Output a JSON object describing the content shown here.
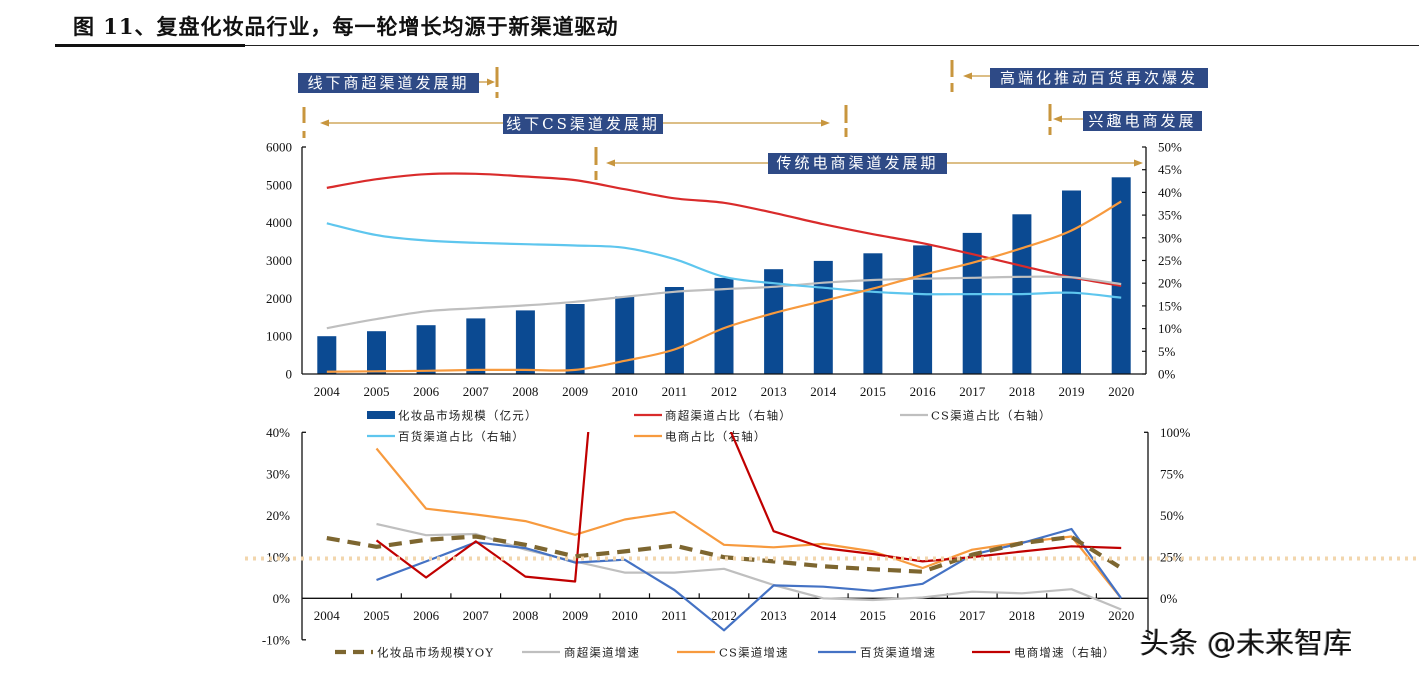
{
  "figure": {
    "title": "图 11、复盘化妆品行业，每一轮增长均源于新渠道驱动"
  },
  "annotations": [
    {
      "label": "线下商超渠道发展期",
      "arrow": "right"
    },
    {
      "label": "线下CS渠道发展期",
      "arrow": "both"
    },
    {
      "label": "传统电商渠道发展期",
      "arrow": "both"
    },
    {
      "label": "高端化推动百货再次爆发",
      "arrow": "left"
    },
    {
      "label": "兴趣电商发展",
      "arrow": "left"
    }
  ],
  "colors": {
    "annotation_box": "#2e4a86",
    "annotation_marker": "#c8963e",
    "reference_line": "#f2d6ad"
  },
  "watermark": "头条 @未来智库",
  "chart_data": [
    {
      "type": "bar",
      "title": "",
      "xlabel": "",
      "ylabel": "",
      "categories": [
        "2004",
        "2005",
        "2006",
        "2007",
        "2008",
        "2009",
        "2010",
        "2011",
        "2012",
        "2013",
        "2014",
        "2015",
        "2016",
        "2017",
        "2018",
        "2019",
        "2020"
      ],
      "ylim_left": [
        0,
        6000
      ],
      "ylim_right": [
        0,
        50
      ],
      "yticks_left": [
        "0",
        "1000",
        "2000",
        "3000",
        "4000",
        "5000",
        "6000"
      ],
      "yticks_right": [
        "0%",
        "5%",
        "10%",
        "15%",
        "20%",
        "25%",
        "30%",
        "35%",
        "40%",
        "45%",
        "50%"
      ],
      "grid": false,
      "legend_position": "bottom",
      "series": [
        {
          "name": "化妆品市场规模（亿元）",
          "type": "bar",
          "axis": "left",
          "color": "#0b4a92",
          "values": [
            1000,
            1130,
            1290,
            1470,
            1680,
            1850,
            2050,
            2300,
            2540,
            2770,
            2990,
            3190,
            3400,
            3730,
            4220,
            4850,
            5200
          ]
        },
        {
          "name": "商超渠道占比（右轴）",
          "type": "line",
          "axis": "right",
          "color": "#d92b2b",
          "values": [
            41.0,
            42.9,
            44.0,
            44.1,
            43.5,
            42.7,
            40.7,
            38.7,
            37.7,
            35.5,
            33.0,
            30.8,
            28.8,
            26.4,
            23.8,
            21.3,
            19.4
          ]
        },
        {
          "name": "CS渠道占比（右轴）",
          "type": "line",
          "axis": "right",
          "color": "#bfbfbf",
          "values": [
            10.1,
            12.1,
            13.8,
            14.5,
            15.1,
            15.9,
            17.0,
            18.1,
            18.7,
            19.2,
            20.1,
            20.7,
            21.0,
            21.2,
            21.4,
            21.3,
            19.8
          ]
        },
        {
          "name": "百货渠道占比（右轴）",
          "type": "line",
          "axis": "right",
          "color": "#5ec6ee",
          "values": [
            33.2,
            30.6,
            29.4,
            28.9,
            28.6,
            28.3,
            27.8,
            25.3,
            21.4,
            20.0,
            19.0,
            18.1,
            17.6,
            17.6,
            17.6,
            17.9,
            16.8
          ]
        },
        {
          "name": "电商占比（右轴）",
          "type": "line",
          "axis": "right",
          "color": "#f79a3e",
          "values": [
            0.5,
            0.6,
            0.7,
            0.9,
            0.9,
            0.9,
            2.9,
            5.4,
            10.1,
            13.4,
            16.1,
            18.8,
            21.8,
            24.5,
            27.7,
            31.6,
            38.0
          ]
        }
      ]
    },
    {
      "type": "line",
      "title": "",
      "xlabel": "",
      "ylabel": "",
      "categories": [
        "2004",
        "2005",
        "2006",
        "2007",
        "2008",
        "2009",
        "2010",
        "2011",
        "2012",
        "2013",
        "2014",
        "2015",
        "2016",
        "2017",
        "2018",
        "2019",
        "2020"
      ],
      "ylim_left": [
        -10,
        40
      ],
      "ylim_right": [
        0,
        100
      ],
      "yticks_left": [
        "-10%",
        "0%",
        "10%",
        "20%",
        "30%",
        "40%"
      ],
      "yticks_right": [
        "0%",
        "25%",
        "50%",
        "75%",
        "100%"
      ],
      "grid": false,
      "legend_position": "bottom",
      "reference_line": {
        "axis": "left",
        "value": 9.6,
        "style": "dotted"
      },
      "series": [
        {
          "name": "化妆品市场规模YOY",
          "type": "line",
          "style": "dashed",
          "axis": "left",
          "color": "#7d6630",
          "values": [
            14.5,
            12.4,
            14.1,
            14.9,
            12.9,
            10.1,
            11.3,
            12.7,
            9.9,
            8.9,
            7.7,
            7.0,
            6.4,
            10.5,
            13.3,
            14.8,
            7.3
          ]
        },
        {
          "name": "商超渠道增速",
          "type": "line",
          "style": "solid",
          "axis": "left",
          "color": "#bfbfbf",
          "values": [
            null,
            17.9,
            15.2,
            15.5,
            11.7,
            8.9,
            6.2,
            6.2,
            7.1,
            3.2,
            0.0,
            -0.4,
            0.2,
            1.6,
            1.2,
            2.2,
            -2.7
          ]
        },
        {
          "name": "CS渠道增速",
          "type": "line",
          "style": "solid",
          "axis": "left",
          "color": "#f79a3e",
          "values": [
            null,
            36.1,
            21.6,
            20.2,
            18.6,
            15.3,
            19.0,
            20.8,
            12.9,
            12.3,
            13.1,
            11.3,
            7.3,
            11.7,
            13.5,
            14.9,
            0.0
          ]
        },
        {
          "name": "百货渠道增速",
          "type": "line",
          "style": "solid",
          "axis": "left",
          "color": "#4472c4",
          "values": [
            null,
            4.4,
            8.9,
            13.5,
            12.1,
            8.6,
            9.3,
            2.0,
            -7.7,
            3.1,
            2.8,
            1.8,
            3.5,
            10.5,
            13.3,
            16.7,
            0.0
          ]
        },
        {
          "name": "电商增速（右轴）",
          "type": "line",
          "style": "solid",
          "axis": "right",
          "color": "#c00000",
          "values": [
            null,
            34.9,
            12.5,
            34.3,
            13.1,
            10.1,
            350,
            230,
            110,
            40.4,
            30.3,
            26.7,
            22.2,
            24.8,
            28.2,
            31.3,
            30.3
          ]
        }
      ]
    }
  ]
}
